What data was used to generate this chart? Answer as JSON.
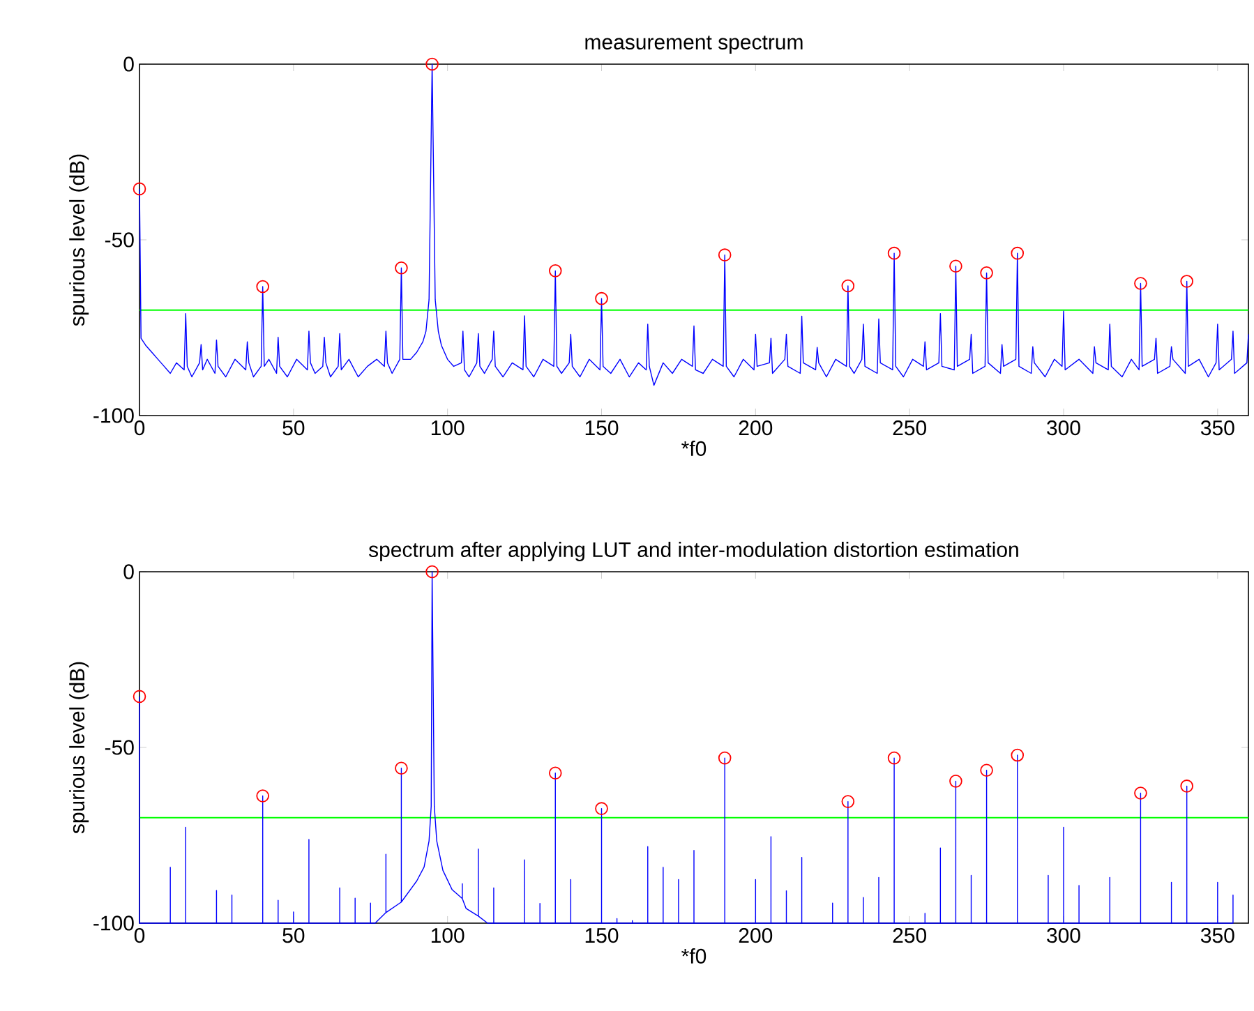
{
  "chart_data": [
    {
      "type": "line",
      "title": "measurement spectrum",
      "xlabel": "*f0",
      "ylabel": "spurious level (dB)",
      "xlim": [
        0,
        360
      ],
      "ylim": [
        -100,
        0
      ],
      "xticks": [
        0,
        50,
        100,
        150,
        200,
        250,
        300,
        350
      ],
      "yticks": [
        -100,
        -50,
        0
      ],
      "ref_lines": [
        {
          "axis": "y",
          "value": -70,
          "color": "#00ff00"
        }
      ],
      "series": [
        {
          "color": "#0000ff",
          "x": [
            0,
            0.5,
            2,
            4,
            6,
            8,
            10,
            12,
            14.5,
            15,
            15.5,
            17,
            19.5,
            20,
            20.5,
            22,
            24.5,
            25,
            25.5,
            28,
            31,
            34.5,
            35,
            35.5,
            37,
            39.5,
            40,
            40.5,
            42,
            44.5,
            45,
            45.5,
            48,
            51,
            54.5,
            55,
            55.5,
            57,
            59.5,
            60,
            60.5,
            62,
            64.5,
            65,
            65.5,
            68,
            71,
            74,
            77,
            79.5,
            80,
            80.5,
            82,
            84.5,
            85,
            85.5,
            88,
            90,
            92,
            93,
            94,
            95,
            96,
            97,
            98,
            100,
            102,
            104.5,
            105,
            105.5,
            107,
            109.5,
            110,
            110.5,
            112,
            114.5,
            115,
            115.5,
            118,
            121,
            124.5,
            125,
            125.5,
            128,
            131,
            134.5,
            135,
            135.5,
            137,
            139.5,
            140,
            140.5,
            143,
            146,
            149.5,
            150,
            150.5,
            153,
            156,
            159,
            162,
            164.5,
            165,
            165.5,
            167,
            170,
            173,
            176,
            179.5,
            180,
            180.5,
            183,
            186,
            189.5,
            190,
            190.5,
            193,
            196,
            199.5,
            200,
            200.5,
            204.5,
            205,
            205.5,
            209.5,
            210,
            210.5,
            214.5,
            215,
            215.5,
            219.5,
            220,
            220.5,
            223,
            226,
            229.5,
            230,
            230.5,
            232,
            234.5,
            235,
            235.5,
            239.5,
            240,
            240.5,
            244.5,
            245,
            245.5,
            248,
            251,
            254.5,
            255,
            255.5,
            259.5,
            260,
            260.5,
            264.5,
            265,
            265.5,
            269.5,
            270,
            270.5,
            274.5,
            275,
            275.5,
            279.5,
            280,
            280.5,
            284.5,
            285,
            285.5,
            289.5,
            290,
            290.5,
            294,
            297,
            299.5,
            300,
            300.5,
            305,
            309.5,
            310,
            310.5,
            314.5,
            315,
            315.5,
            319,
            322,
            324.5,
            325,
            325.5,
            329.5,
            330,
            330.5,
            334.5,
            335,
            335.5,
            339.5,
            340,
            340.5,
            344,
            347,
            349.5,
            350,
            350.5,
            354.5,
            355,
            355.5,
            359.5,
            360
          ],
          "values": [
            -35.5,
            -78,
            -80,
            -82,
            -84,
            -86,
            -88,
            -85,
            -87,
            -71,
            -86,
            -89,
            -85,
            -79.8,
            -87,
            -84,
            -88,
            -78.5,
            -86,
            -89,
            -84,
            -87,
            -79,
            -85,
            -89,
            -86,
            -63.3,
            -86,
            -84,
            -88,
            -77.7,
            -86,
            -89,
            -84,
            -87,
            -76,
            -85,
            -88,
            -86,
            -77.7,
            -85,
            -89,
            -86,
            -76.7,
            -87,
            -84,
            -89,
            -86,
            -84,
            -86,
            -76,
            -85,
            -88,
            -84,
            -58,
            -84,
            -84,
            -82,
            -79,
            -76,
            -67,
            0,
            -67,
            -76,
            -80,
            -84,
            -86,
            -85,
            -76,
            -87,
            -89,
            -85,
            -76.7,
            -86,
            -88,
            -84,
            -76,
            -86,
            -89,
            -85,
            -87,
            -71.6,
            -86,
            -89,
            -84,
            -86,
            -58.8,
            -86,
            -88,
            -85,
            -76.9,
            -86,
            -89,
            -84,
            -87,
            -66.7,
            -86,
            -88,
            -84,
            -89,
            -85,
            -87,
            -74,
            -86,
            -91.4,
            -85,
            -88,
            -84,
            -86,
            -74.5,
            -87,
            -88,
            -84,
            -86,
            -54.3,
            -86,
            -89,
            -84,
            -87,
            -76.9,
            -86,
            -85,
            -78,
            -88,
            -84,
            -76.9,
            -86,
            -88,
            -71.7,
            -85,
            -87,
            -80.6,
            -85,
            -89,
            -84,
            -86,
            -63.1,
            -86,
            -88,
            -84,
            -74,
            -86,
            -88,
            -72.5,
            -85,
            -87,
            -53.8,
            -86,
            -89,
            -84,
            -86,
            -79,
            -87,
            -85,
            -71,
            -86,
            -87,
            -57.5,
            -86,
            -84,
            -76.9,
            -88,
            -86,
            -59.4,
            -85,
            -88,
            -79.8,
            -86,
            -84,
            -53.8,
            -86,
            -88,
            -80.4,
            -85,
            -89,
            -84,
            -86,
            -70.3,
            -87,
            -84,
            -88,
            -80.4,
            -85,
            -87,
            -74,
            -86,
            -89,
            -84,
            -87,
            -62.4,
            -86,
            -84,
            -78,
            -88,
            -86,
            -80.4,
            -84,
            -88,
            -61.8,
            -86,
            -84,
            -89,
            -85,
            -74,
            -87,
            -84,
            -76,
            -88,
            -85,
            -76.9
          ]
        },
        {
          "type": "scatter",
          "color": "#ff0000",
          "marker": "circle",
          "x": [
            0,
            40,
            85,
            95,
            135,
            150,
            190,
            230,
            245,
            265,
            275,
            285,
            325,
            340
          ],
          "values": [
            -35.5,
            -63.3,
            -58,
            0,
            -58.8,
            -66.7,
            -54.3,
            -63.1,
            -53.8,
            -57.5,
            -59.4,
            -53.8,
            -62.4,
            -61.8
          ]
        }
      ]
    },
    {
      "type": "line",
      "title": "spectrum after applying LUT and inter-modulation distortion estimation",
      "xlabel": "*f0",
      "ylabel": "spurious level (dB)",
      "xlim": [
        0,
        360
      ],
      "ylim": [
        -100,
        0
      ],
      "xticks": [
        0,
        50,
        100,
        150,
        200,
        250,
        300,
        350
      ],
      "yticks": [
        -100,
        -50,
        0
      ],
      "ref_lines": [
        {
          "axis": "y",
          "value": -70,
          "color": "#00ff00"
        }
      ],
      "series": [
        {
          "color": "#0000ff",
          "x": [
            0,
            0,
            10,
            10,
            10,
            15,
            15,
            15,
            25,
            25,
            25,
            30,
            30,
            30,
            40,
            40,
            40,
            45,
            45,
            45,
            50,
            50,
            50,
            55,
            55,
            55,
            65,
            65,
            65,
            70,
            70,
            70,
            75,
            75,
            75,
            76.5,
            80,
            80,
            80,
            85,
            85,
            85,
            90,
            92.4,
            94,
            94.7,
            95,
            95.7,
            96.5,
            98.5,
            101.5,
            104.8,
            104.8,
            104.8,
            106,
            110,
            110,
            110,
            113,
            115,
            115,
            115,
            125,
            125,
            125,
            130,
            130,
            130,
            135,
            135,
            135,
            140,
            140,
            140,
            150,
            150,
            150,
            155,
            155,
            155,
            160,
            160,
            160,
            165,
            165,
            165,
            170,
            170,
            170,
            175,
            175,
            175,
            180,
            180,
            180,
            190,
            190,
            190,
            200,
            200,
            200,
            205,
            205,
            205,
            210,
            210,
            210,
            215,
            215,
            215,
            225,
            225,
            225,
            230,
            230,
            230,
            235,
            235,
            235,
            240,
            240,
            240,
            245,
            245,
            245,
            255,
            255,
            255,
            260,
            260,
            260,
            265,
            265,
            265,
            270,
            270,
            270,
            275,
            275,
            275,
            285,
            285,
            285,
            295,
            295,
            295,
            300,
            300,
            300,
            305,
            305,
            305,
            315,
            315,
            315,
            325,
            325,
            325,
            335,
            335,
            335,
            340,
            340,
            340,
            350,
            350,
            350,
            355,
            355,
            355
          ],
          "values": [
            -35.5,
            -100,
            -100,
            -84.1,
            -100,
            -100,
            -72.7,
            -100,
            -100,
            -90.7,
            -100,
            -100,
            -92,
            -100,
            -100,
            -63.8,
            -100,
            -100,
            -93.5,
            -100,
            -100,
            -96.8,
            -100,
            -100,
            -76.2,
            -100,
            -100,
            -90,
            -100,
            -100,
            -92.9,
            -100,
            -100,
            -94.3,
            -100,
            -100,
            -97,
            -80.4,
            -97,
            -94,
            -55.9,
            -94,
            -88,
            -84,
            -76.6,
            -66.7,
            0,
            -66.7,
            -76.6,
            -85,
            -90.5,
            -93,
            -88.8,
            -93,
            -95.8,
            -98,
            -78.9,
            -98,
            -100,
            -100,
            -90,
            -100,
            -100,
            -82,
            -100,
            -100,
            -94.4,
            -100,
            -100,
            -57.3,
            -100,
            -100,
            -87.6,
            -100,
            -100,
            -67.4,
            -100,
            -100,
            -98.7,
            -100,
            -100,
            -99.3,
            -100,
            -100,
            -78.2,
            -100,
            -100,
            -84.1,
            -100,
            -100,
            -87.6,
            -100,
            -100,
            -79.3,
            -100,
            -100,
            -53,
            -100,
            -100,
            -87.6,
            -100,
            -100,
            -75.4,
            -100,
            -100,
            -90.8,
            -100,
            -100,
            -81.3,
            -100,
            -100,
            -94.3,
            -100,
            -100,
            -65.4,
            -100,
            -100,
            -92.7,
            -100,
            -100,
            -87,
            -100,
            -100,
            -53,
            -100,
            -100,
            -97.2,
            -100,
            -100,
            -78.6,
            -100,
            -100,
            -59.6,
            -100,
            -100,
            -86.4,
            -100,
            -100,
            -56.5,
            -100,
            -100,
            -52.2,
            -100,
            -100,
            -86.4,
            -100,
            -100,
            -72.7,
            -100,
            -100,
            -89.3,
            -100,
            -100,
            -87,
            -100,
            -100,
            -63,
            -100,
            -100,
            -88.4,
            -100,
            -100,
            -61,
            -100,
            -100,
            -88.4,
            -100,
            -100,
            -92,
            -100
          ]
        },
        {
          "type": "scatter",
          "color": "#ff0000",
          "marker": "circle",
          "x": [
            0,
            40,
            85,
            95,
            135,
            150,
            190,
            230,
            245,
            265,
            275,
            285,
            325,
            340
          ],
          "values": [
            -35.5,
            -63.8,
            -55.9,
            0,
            -57.3,
            -67.4,
            -53,
            -65.4,
            -53,
            -59.6,
            -56.5,
            -52.2,
            -63,
            -61
          ]
        }
      ]
    }
  ]
}
